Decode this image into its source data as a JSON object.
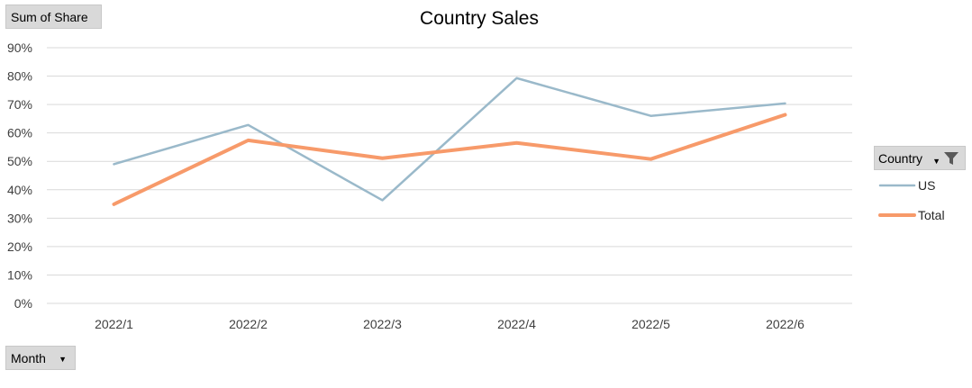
{
  "buttons": {
    "value_field": "Sum of Share",
    "axis_field": "Month",
    "legend_field": "Country"
  },
  "icons": {
    "dropdown": "dropdown-arrow-icon",
    "filter": "filter-icon"
  },
  "chart_data": {
    "type": "line",
    "title": "Country Sales",
    "xlabel": "",
    "ylabel": "",
    "categories": [
      "2022/1",
      "2022/2",
      "2022/3",
      "2022/4",
      "2022/5",
      "2022/6"
    ],
    "ylim": [
      0,
      90
    ],
    "yticks": [
      "0%",
      "10%",
      "20%",
      "30%",
      "40%",
      "50%",
      "60%",
      "70%",
      "80%",
      "90%"
    ],
    "grid": true,
    "legend_position": "right",
    "series": [
      {
        "name": "US",
        "values": [
          49,
          62.8,
          36.3,
          79.3,
          66,
          70.4
        ],
        "color": "#9ab9ca"
      },
      {
        "name": "Total",
        "values": [
          34.9,
          57.4,
          51.1,
          56.5,
          50.8,
          66.4
        ],
        "color": "#f79a6a"
      }
    ]
  }
}
